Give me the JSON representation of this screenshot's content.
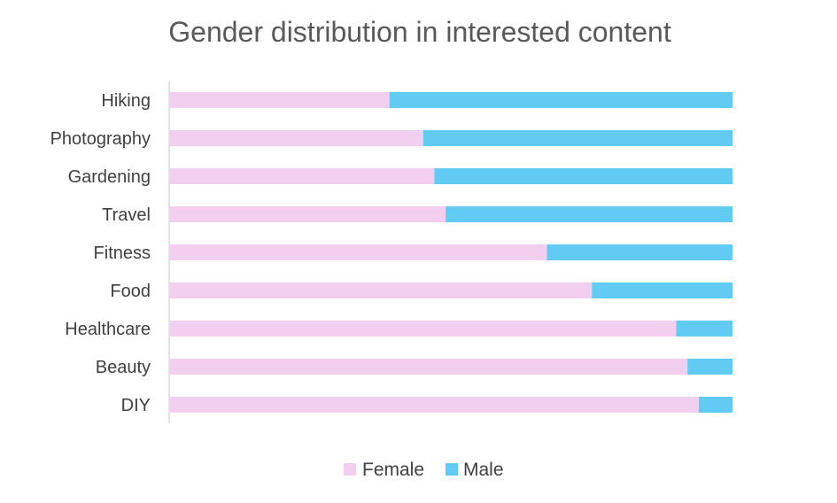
{
  "chart_data": {
    "type": "bar",
    "orientation": "horizontal",
    "stacked": "percent",
    "title": "Gender distribution in interested content",
    "categories": [
      "Hiking",
      "Photography",
      "Gardening",
      "Travel",
      "Fitness",
      "Food",
      "Healthcare",
      "Beauty",
      "DIY"
    ],
    "series": [
      {
        "name": "Female",
        "color": "#f2cfee",
        "values": [
          39,
          45,
          47,
          49,
          67,
          75,
          90,
          92,
          94
        ]
      },
      {
        "name": "Male",
        "color": "#61cbf3",
        "values": [
          61,
          55,
          53,
          51,
          33,
          25,
          10,
          8,
          6
        ]
      }
    ],
    "xlim": [
      0,
      100
    ],
    "grid": false,
    "legend": "bottom",
    "axis_color": "#d9d9d9"
  }
}
